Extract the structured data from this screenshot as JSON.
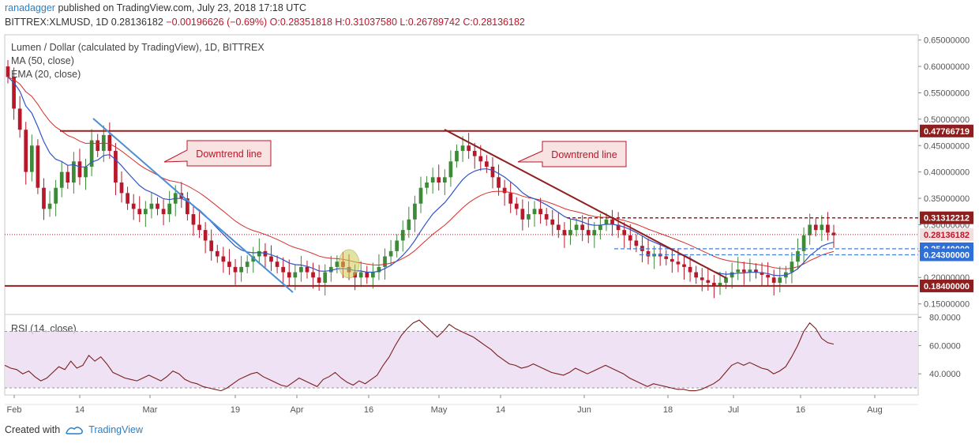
{
  "header": {
    "author": "ranadagger",
    "published": "published on TradingView.com, July 23, 2018 17:18 UTC",
    "symbol_line_prefix": "BITTREX:XLMUSD, 1D 0.28136182",
    "change": "−0.00196626 (−0.69%)",
    "ohlc": "O:0.28351818 H:0.31037580 L:0.26789742 C:0.28136182"
  },
  "legend": {
    "title": "Lumen / Dollar (calculated by TradingView), 1D, BITTREX",
    "ma": "MA (50, close)",
    "ema": "EMA (20, close)",
    "rsi": "RSI (14, close)"
  },
  "footer": {
    "created_with": "Created with",
    "brand": "TradingView"
  },
  "colors": {
    "up": "#3d8a38",
    "down": "#b8182a",
    "ema": "#3154c4",
    "ma": "#d6302e",
    "support_resistance": "#a01c1c",
    "downtrend_blue": "#4a8fd6",
    "downtrend_red": "#8e1f1f",
    "rsi_line": "#7a1e1e",
    "rsi_band": "#e9d8f0"
  },
  "chart_data": [
    {
      "type": "candlestick",
      "title": "Lumen / Dollar (calculated by TradingView), 1D, BITTREX",
      "ylim": [
        0.13,
        0.66
      ],
      "y_ticks": [
        "0.65000000",
        "0.60000000",
        "0.55000000",
        "0.50000000",
        "0.45000000",
        "0.40000000",
        "0.35000000",
        "0.30000000",
        "0.25000000",
        "0.20000000",
        "0.15000000"
      ],
      "x_ticks": [
        "Feb",
        "14",
        "Mar",
        "19",
        "Apr",
        "16",
        "May",
        "14",
        "Jun",
        "18",
        "Jul",
        "16",
        "Aug"
      ],
      "horizontal_levels": [
        {
          "label": "0.47766719",
          "value": 0.47766719,
          "style": "solid"
        },
        {
          "label": "0.31312212",
          "value": 0.31312212,
          "style": "dashed"
        },
        {
          "label": "0.28136182",
          "value": 0.28136182,
          "style": "dotted"
        },
        {
          "label": "0.25440000",
          "value": 0.2544,
          "style": "dashed-blue"
        },
        {
          "label": "0.24300000",
          "value": 0.243,
          "style": "dashed-blue"
        },
        {
          "label": "0.18400000",
          "value": 0.184,
          "style": "solid"
        }
      ],
      "annotations": [
        {
          "text": "Downtrend line"
        },
        {
          "text": "Downtrend line"
        }
      ],
      "close_series": [
        0.58,
        0.52,
        0.48,
        0.4,
        0.45,
        0.37,
        0.33,
        0.34,
        0.37,
        0.4,
        0.38,
        0.42,
        0.39,
        0.41,
        0.46,
        0.44,
        0.47,
        0.44,
        0.38,
        0.36,
        0.34,
        0.33,
        0.32,
        0.33,
        0.34,
        0.33,
        0.32,
        0.34,
        0.36,
        0.35,
        0.32,
        0.3,
        0.29,
        0.27,
        0.25,
        0.24,
        0.23,
        0.22,
        0.21,
        0.22,
        0.23,
        0.24,
        0.25,
        0.24,
        0.23,
        0.22,
        0.21,
        0.2,
        0.21,
        0.22,
        0.21,
        0.2,
        0.19,
        0.21,
        0.22,
        0.23,
        0.22,
        0.21,
        0.2,
        0.21,
        0.2,
        0.21,
        0.22,
        0.24,
        0.25,
        0.27,
        0.29,
        0.31,
        0.34,
        0.37,
        0.38,
        0.39,
        0.38,
        0.39,
        0.42,
        0.44,
        0.45,
        0.44,
        0.43,
        0.42,
        0.41,
        0.39,
        0.37,
        0.36,
        0.34,
        0.33,
        0.31,
        0.32,
        0.33,
        0.32,
        0.31,
        0.3,
        0.29,
        0.28,
        0.29,
        0.3,
        0.29,
        0.28,
        0.29,
        0.3,
        0.31,
        0.3,
        0.29,
        0.28,
        0.27,
        0.26,
        0.25,
        0.24,
        0.245,
        0.24,
        0.235,
        0.23,
        0.225,
        0.22,
        0.21,
        0.2,
        0.195,
        0.19,
        0.185,
        0.19,
        0.2,
        0.21,
        0.215,
        0.21,
        0.215,
        0.21,
        0.205,
        0.2,
        0.19,
        0.2,
        0.21,
        0.23,
        0.25,
        0.28,
        0.3,
        0.29,
        0.3,
        0.285,
        0.28
      ]
    },
    {
      "type": "line",
      "title": "RSI (14, close)",
      "ylim": [
        25,
        82
      ],
      "y_ticks": [
        "80.0000",
        "60.0000",
        "40.0000"
      ],
      "band": [
        30,
        70
      ],
      "values": [
        46,
        44,
        43,
        40,
        42,
        38,
        35,
        37,
        41,
        45,
        43,
        49,
        44,
        46,
        53,
        49,
        52,
        47,
        41,
        39,
        37,
        36,
        35,
        37,
        39,
        37,
        35,
        38,
        42,
        40,
        36,
        34,
        33,
        31,
        30,
        29,
        28,
        30,
        33,
        36,
        38,
        40,
        41,
        38,
        36,
        34,
        32,
        31,
        34,
        37,
        35,
        33,
        31,
        36,
        38,
        41,
        37,
        34,
        32,
        35,
        33,
        36,
        39,
        46,
        52,
        60,
        67,
        72,
        76,
        78,
        74,
        70,
        66,
        70,
        75,
        72,
        70,
        68,
        66,
        63,
        60,
        57,
        53,
        50,
        47,
        46,
        44,
        45,
        47,
        45,
        43,
        41,
        40,
        39,
        41,
        44,
        42,
        40,
        42,
        44,
        46,
        44,
        42,
        40,
        37,
        35,
        33,
        31,
        33,
        32,
        31,
        30,
        29,
        29,
        28,
        28,
        29,
        31,
        33,
        36,
        41,
        46,
        48,
        46,
        48,
        46,
        44,
        43,
        40,
        42,
        45,
        52,
        60,
        70,
        76,
        72,
        65,
        62,
        61
      ]
    }
  ]
}
